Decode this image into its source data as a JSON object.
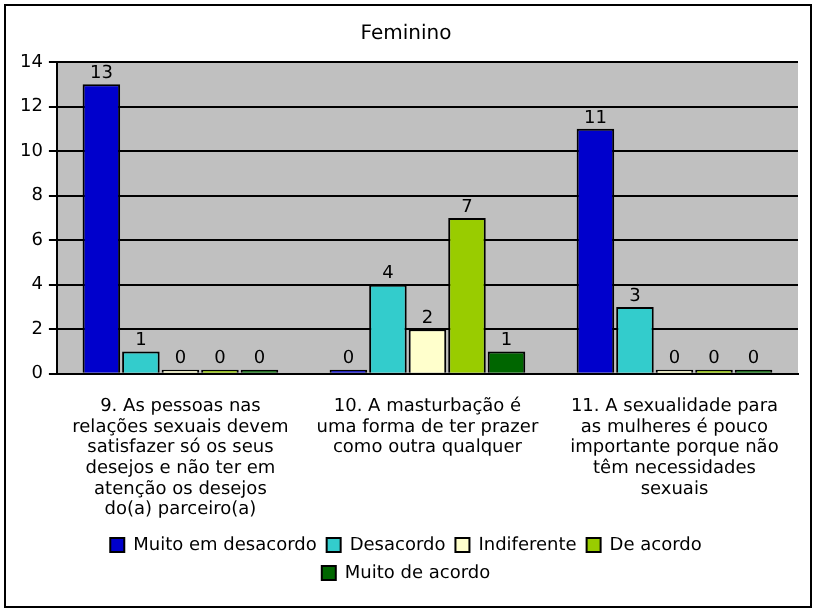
{
  "chart_data": {
    "type": "bar",
    "title": "Feminino",
    "categories": [
      "9. As pessoas nas relações sexuais devem satisfazer só os seus desejos e não ter em atenção os desejos do(a) parceiro(a)",
      "10. A masturbação é uma forma de ter prazer como outra qualquer",
      "11. A sexualidade para as mulheres é pouco importante porque não têm necessidades sexuais"
    ],
    "series": [
      {
        "name": "Muito em desacordo",
        "color": "#0000cc",
        "values": [
          13,
          0,
          11
        ]
      },
      {
        "name": "Desacordo",
        "color": "#33cccc",
        "values": [
          1,
          4,
          3
        ]
      },
      {
        "name": "Indiferente",
        "color": "#ffffcc",
        "values": [
          0,
          2,
          0
        ]
      },
      {
        "name": "De acordo",
        "color": "#99cc00",
        "values": [
          0,
          7,
          0
        ]
      },
      {
        "name": "Muito de acordo",
        "color": "#006600",
        "values": [
          0,
          1,
          0
        ]
      }
    ],
    "ylim": [
      0,
      14
    ],
    "yticks": [
      0,
      2,
      4,
      6,
      8,
      10,
      12,
      14
    ],
    "grid": "y",
    "legend": "bottom",
    "data_labels": true
  }
}
